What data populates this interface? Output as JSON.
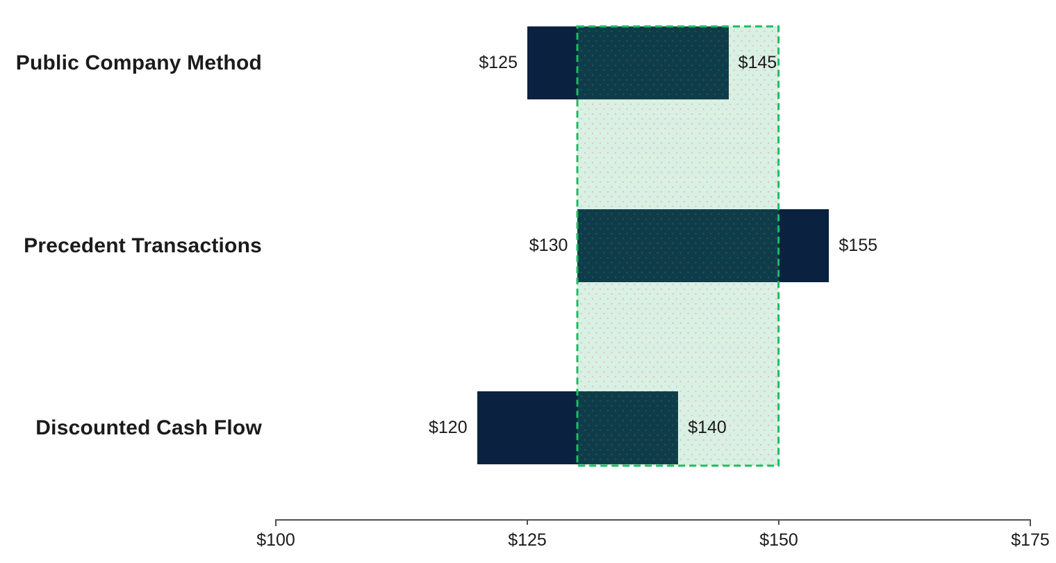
{
  "chart_data": {
    "type": "bar",
    "subtype": "range_football_field",
    "title": "",
    "orientation": "horizontal",
    "categories": [
      "Public Company Method",
      "Precedent Transactions",
      "Discounted Cash Flow"
    ],
    "series": [
      {
        "name": "Public Company Method",
        "low": 125,
        "high": 145,
        "low_label": "$125",
        "high_label": "$145"
      },
      {
        "name": "Precedent Transactions",
        "low": 130,
        "high": 155,
        "low_label": "$130",
        "high_label": "$155"
      },
      {
        "name": "Discounted Cash Flow",
        "low": 120,
        "high": 140,
        "low_label": "$120",
        "high_label": "$140"
      }
    ],
    "highlight_range": {
      "low": 130,
      "high": 150
    },
    "x_axis": {
      "min": 100,
      "max": 175,
      "grid": false,
      "ticks": [
        {
          "value": 100,
          "label": "$100"
        },
        {
          "value": 125,
          "label": "$125"
        },
        {
          "value": 150,
          "label": "$150"
        },
        {
          "value": 175,
          "label": "$175"
        }
      ]
    },
    "legend": null,
    "colors": {
      "bar": "#0a2240",
      "bar_in_highlight": "#103c4a",
      "highlight_fill": "#d9f0e4",
      "highlight_border": "#18bf60",
      "label_text": "#1b1b1b",
      "axis_line": "#4f4f4f"
    }
  }
}
